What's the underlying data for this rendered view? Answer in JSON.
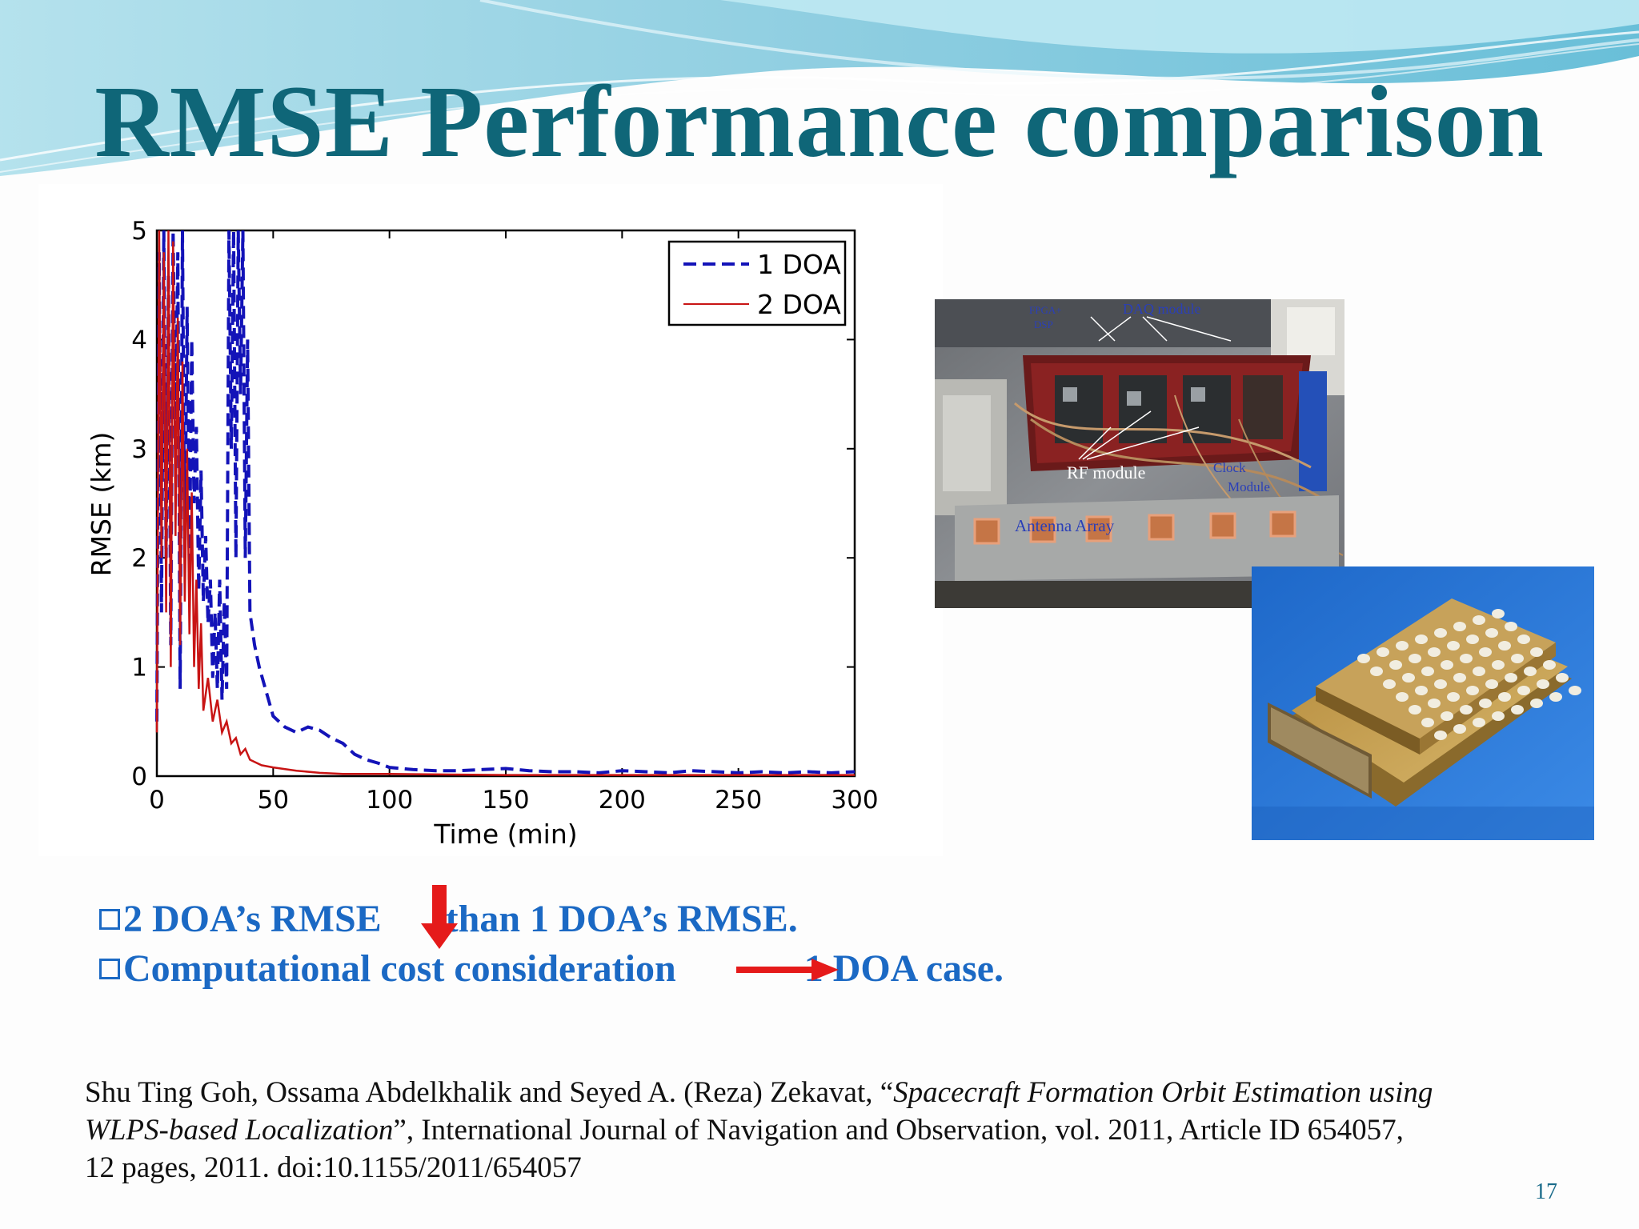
{
  "slide": {
    "title": "RMSE Performance comparison",
    "page_number": "17"
  },
  "chart_data": {
    "type": "line",
    "xlabel": "Time (min)",
    "ylabel": "RMSE (km)",
    "xlim": [
      0,
      300
    ],
    "ylim": [
      0,
      5
    ],
    "x_ticks": [
      "0",
      "50",
      "100",
      "150",
      "200",
      "250",
      "300"
    ],
    "y_ticks": [
      "0",
      "1",
      "2",
      "3",
      "4",
      "5"
    ],
    "legend": [
      "1 DOA",
      "2 DOA"
    ],
    "legend_position": "top-right",
    "series": [
      {
        "name": "1 DOA",
        "color": "#1313b8",
        "style": "dashed",
        "x": [
          0,
          1,
          2,
          3,
          4,
          5,
          6,
          7,
          8,
          9,
          10,
          11,
          12,
          13,
          14,
          15,
          16,
          17,
          18,
          19,
          20,
          21,
          22,
          23,
          24,
          25,
          26,
          27,
          28,
          29,
          30,
          31,
          32,
          33,
          34,
          35,
          36,
          37,
          38,
          39,
          40,
          42,
          44,
          46,
          48,
          50,
          55,
          60,
          65,
          70,
          75,
          80,
          85,
          90,
          95,
          100,
          110,
          120,
          130,
          140,
          150,
          160,
          170,
          180,
          190,
          200,
          210,
          220,
          230,
          240,
          250,
          260,
          270,
          280,
          290,
          300
        ],
        "y": [
          0.5,
          4.8,
          1.5,
          5,
          2,
          4.6,
          1.2,
          5,
          3,
          4.8,
          0.8,
          5,
          2,
          4.3,
          1.8,
          4,
          2.5,
          3.2,
          1.7,
          2.8,
          1.6,
          2.2,
          1.4,
          1.8,
          0.9,
          1.5,
          0.8,
          1.8,
          0.7,
          1.6,
          0.8,
          5,
          3,
          5,
          2,
          5,
          3.5,
          5,
          2,
          4,
          1.5,
          1.2,
          1,
          0.85,
          0.7,
          0.55,
          0.45,
          0.4,
          0.45,
          0.42,
          0.35,
          0.3,
          0.2,
          0.15,
          0.12,
          0.08,
          0.06,
          0.05,
          0.05,
          0.06,
          0.07,
          0.05,
          0.04,
          0.04,
          0.03,
          0.05,
          0.04,
          0.03,
          0.05,
          0.04,
          0.03,
          0.04,
          0.03,
          0.04,
          0.03,
          0.04
        ]
      },
      {
        "name": "2 DOA",
        "color": "#c81414",
        "style": "solid",
        "x": [
          0,
          1,
          2,
          3,
          4,
          5,
          6,
          7,
          8,
          9,
          10,
          11,
          12,
          13,
          14,
          15,
          16,
          17,
          18,
          19,
          20,
          22,
          24,
          26,
          28,
          30,
          32,
          34,
          36,
          38,
          40,
          45,
          50,
          60,
          70,
          80,
          90,
          100,
          150,
          200,
          250,
          300
        ],
        "y": [
          0.4,
          5,
          2,
          4.8,
          1.5,
          5,
          1,
          4.9,
          2.2,
          4.2,
          1.2,
          3.8,
          1.6,
          3,
          1.3,
          2.6,
          1,
          1.8,
          0.8,
          1.4,
          0.6,
          0.9,
          0.5,
          0.7,
          0.4,
          0.5,
          0.3,
          0.35,
          0.2,
          0.25,
          0.15,
          0.1,
          0.08,
          0.05,
          0.03,
          0.02,
          0.02,
          0.02,
          0.01,
          0.01,
          0.01,
          0.01
        ]
      }
    ]
  },
  "photos": {
    "hardware_labels": [
      "FPGA+",
      "DSP",
      "DAQ module",
      "RF module",
      "Clock",
      "Module",
      "Antenna Array"
    ]
  },
  "bullets": [
    {
      "pre": "2 DOA’s RMSE",
      "post": "than 1 DOA’s RMSE."
    },
    {
      "pre": "Computational cost consideration",
      "post": "1 DOA case."
    }
  ],
  "citation": {
    "authors": "Shu Ting Goh, Ossama Abdelkhalik and Seyed A. (Reza) Zekavat, “",
    "title_part1": "Spacecraft Formation Orbit Estimation using",
    "title_part2": "WLPS-based Localization",
    "rest_line2": "”, International Journal of Navigation and Observation, vol. 2011, Article ID 654057,",
    "rest_line3": "12 pages, 2011. doi:10.1155/2011/654057"
  }
}
